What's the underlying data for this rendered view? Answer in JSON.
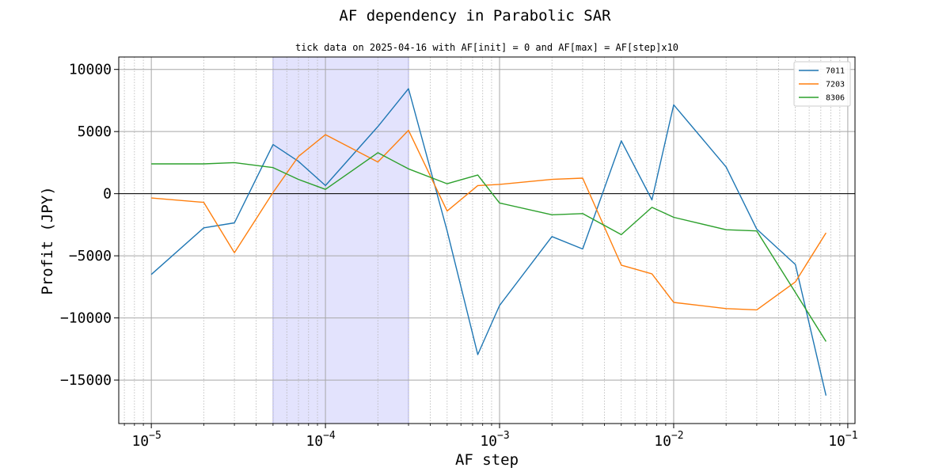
{
  "chart_data": {
    "type": "line",
    "title": "AF dependency in Parabolic SAR",
    "subtitle": "tick data on 2025-04-16 with AF[init] = 0 and AF[max] = AF[step]x10",
    "xlabel": "AF step",
    "ylabel": "Profit (JPY)",
    "xscale": "log",
    "xlim": [
      6.5e-06,
      0.11
    ],
    "ylim": [
      -18500,
      11000
    ],
    "x_ticks": [
      {
        "value": 1e-05,
        "base": "10",
        "exp": "−5"
      },
      {
        "value": 0.0001,
        "base": "10",
        "exp": "−4"
      },
      {
        "value": 0.001,
        "base": "10",
        "exp": "−3"
      },
      {
        "value": 0.01,
        "base": "10",
        "exp": "−2"
      },
      {
        "value": 0.1,
        "base": "10",
        "exp": "−1"
      }
    ],
    "y_ticks": [
      {
        "value": 10000,
        "label": "10000"
      },
      {
        "value": 5000,
        "label": "5000"
      },
      {
        "value": 0,
        "label": "0"
      },
      {
        "value": -5000,
        "label": "−5000"
      },
      {
        "value": -10000,
        "label": "−10000"
      },
      {
        "value": -15000,
        "label": "−15000"
      }
    ],
    "grid": true,
    "zero_line": true,
    "highlight_span": {
      "x_start": 5e-05,
      "x_end": 0.0003,
      "color": "#e3e3fd",
      "edge": "#9f9fe8"
    },
    "legend_position": "top-right",
    "x": [
      1e-05,
      2e-05,
      3e-05,
      5e-05,
      7e-05,
      0.0001,
      0.0002,
      0.0003,
      0.0005,
      0.00075,
      0.001,
      0.002,
      0.003,
      0.005,
      0.0075,
      0.01,
      0.02,
      0.03,
      0.05,
      0.075
    ],
    "series": [
      {
        "name": "7011",
        "color": "#1f77b4",
        "values": [
          -6500,
          -2750,
          -2350,
          3950,
          2600,
          650,
          5400,
          8450,
          -3000,
          -12950,
          -9000,
          -3450,
          -4450,
          4250,
          -500,
          7150,
          2150,
          -2850,
          -5700,
          -16250
        ]
      },
      {
        "name": "7203",
        "color": "#ff7f0e",
        "values": [
          -350,
          -700,
          -4750,
          100,
          3000,
          4750,
          2550,
          5100,
          -1400,
          650,
          750,
          1150,
          1250,
          -5750,
          -6450,
          -8750,
          -9250,
          -9350,
          -7100,
          -3150
        ]
      },
      {
        "name": "8306",
        "color": "#2ca02c",
        "values": [
          2400,
          2400,
          2500,
          2100,
          1150,
          350,
          3300,
          2000,
          800,
          1500,
          -750,
          -1700,
          -1600,
          -3300,
          -1100,
          -1900,
          -2900,
          -3000,
          -7950,
          -11900
        ]
      }
    ]
  }
}
